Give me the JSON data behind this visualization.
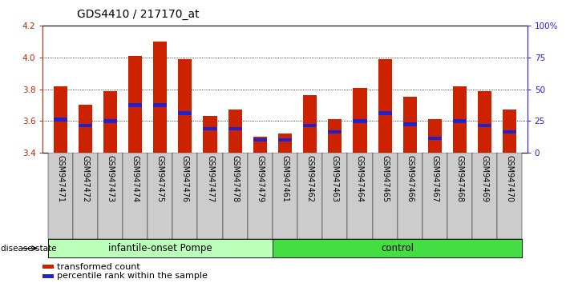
{
  "title": "GDS4410 / 217170_at",
  "samples": [
    "GSM947471",
    "GSM947472",
    "GSM947473",
    "GSM947474",
    "GSM947475",
    "GSM947476",
    "GSM947477",
    "GSM947478",
    "GSM947479",
    "GSM947461",
    "GSM947462",
    "GSM947463",
    "GSM947464",
    "GSM947465",
    "GSM947466",
    "GSM947467",
    "GSM947468",
    "GSM947469",
    "GSM947470"
  ],
  "red_values": [
    3.82,
    3.7,
    3.79,
    4.01,
    4.1,
    3.99,
    3.63,
    3.67,
    3.5,
    3.52,
    3.76,
    3.61,
    3.81,
    3.99,
    3.75,
    3.61,
    3.82,
    3.79,
    3.67
  ],
  "blue_values": [
    3.61,
    3.57,
    3.6,
    3.7,
    3.7,
    3.65,
    3.55,
    3.55,
    3.48,
    3.48,
    3.57,
    3.53,
    3.6,
    3.65,
    3.58,
    3.49,
    3.6,
    3.57,
    3.53
  ],
  "ylim_left": [
    3.4,
    4.2
  ],
  "ylim_right": [
    0,
    100
  ],
  "right_ticks": [
    0,
    25,
    50,
    75,
    100
  ],
  "right_tick_labels": [
    "0",
    "25",
    "50",
    "75",
    "100%"
  ],
  "left_ticks": [
    3.4,
    3.6,
    3.8,
    4.0,
    4.2
  ],
  "left_tick_labels": [
    "3.4",
    "3.6",
    "3.8",
    "4.0",
    "4.2"
  ],
  "group1_label": "infantile-onset Pompe",
  "group2_label": "control",
  "group1_count": 9,
  "group2_count": 10,
  "disease_state_label": "disease state",
  "legend_red_label": "transformed count",
  "legend_blue_label": "percentile rank within the sample",
  "bar_color": "#cc2200",
  "blue_color": "#2222cc",
  "group1_bg": "#bbffbb",
  "group2_bg": "#44dd44",
  "tick_bg_color": "#cccccc",
  "bar_width": 0.55,
  "base_value": 3.4,
  "title_fontsize": 10,
  "tick_fontsize": 7.5,
  "label_fontsize": 8.5
}
